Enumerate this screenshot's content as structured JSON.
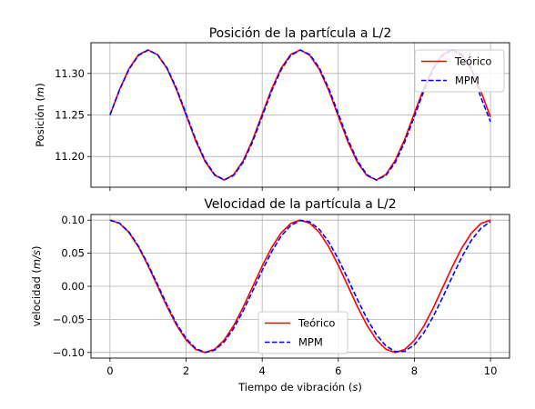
{
  "chart_data": [
    {
      "type": "line",
      "title": "Posición de la partícula a L/2",
      "xlabel": "",
      "ylabel": "Posición (m)",
      "ylabel_parts": [
        "Posición (",
        "m",
        ")"
      ],
      "xlim": [
        -0.5,
        10.5
      ],
      "ylim": [
        11.163,
        11.337
      ],
      "yticks": [
        11.2,
        11.25,
        11.3
      ],
      "ytick_labels": [
        "11.20",
        "11.25",
        "11.30"
      ],
      "grid": true,
      "legend_position": "upper right",
      "series": [
        {
          "name": "Teórico",
          "color": "#ff0000",
          "style": "solid",
          "x": [
            0,
            0.25,
            0.5,
            0.75,
            1.0,
            1.25,
            1.5,
            1.75,
            2.0,
            2.25,
            2.5,
            2.75,
            3.0,
            3.25,
            3.5,
            3.75,
            4.0,
            4.25,
            4.5,
            4.75,
            5.0,
            5.25,
            5.5,
            5.75,
            6.0,
            6.25,
            6.5,
            6.75,
            7.0,
            7.25,
            7.5,
            7.75,
            8.0,
            8.25,
            8.5,
            8.75,
            9.0,
            9.25,
            9.5,
            9.75,
            10.0
          ],
          "y": [
            11.25,
            11.2805,
            11.3058,
            11.3225,
            11.3283,
            11.3224,
            11.3057,
            11.2803,
            11.2497,
            11.2191,
            11.1939,
            11.1775,
            11.1717,
            11.1782,
            11.1948,
            11.2203,
            11.251,
            11.2816,
            11.3066,
            11.3229,
            11.3283,
            11.3219,
            11.3049,
            11.2793,
            11.2485,
            11.218,
            11.1932,
            11.1771,
            11.1717,
            11.1784,
            11.1956,
            11.2213,
            11.2522,
            11.2826,
            11.3074,
            11.3233,
            11.3283,
            11.3214,
            11.3041,
            11.2782,
            11.2475
          ]
        },
        {
          "name": "MPM",
          "color": "#0000ff",
          "style": "dashed",
          "x": [
            0,
            0.25,
            0.5,
            0.75,
            1.0,
            1.25,
            1.5,
            1.75,
            2.0,
            2.25,
            2.5,
            2.75,
            3.0,
            3.25,
            3.5,
            3.75,
            4.0,
            4.25,
            4.5,
            4.75,
            5.0,
            5.25,
            5.5,
            5.75,
            6.0,
            6.25,
            6.5,
            6.75,
            7.0,
            7.25,
            7.5,
            7.75,
            8.0,
            8.25,
            8.5,
            8.75,
            9.0,
            9.25,
            9.5,
            9.75,
            10.0
          ],
          "y": [
            11.25,
            11.2801,
            11.3051,
            11.3218,
            11.328,
            11.3227,
            11.3066,
            11.2818,
            11.2515,
            11.2208,
            11.1952,
            11.1782,
            11.1718,
            11.1772,
            11.1932,
            11.2181,
            11.2484,
            11.2791,
            11.3047,
            11.3217,
            11.3282,
            11.3228,
            11.3068,
            11.2819,
            11.2516,
            11.2208,
            11.1951,
            11.1781,
            11.1717,
            11.1771,
            11.1931,
            11.218,
            11.2483,
            11.2791,
            11.3049,
            11.3219,
            11.3283,
            11.3229,
            11.3068,
            11.2708,
            11.242
          ]
        }
      ]
    },
    {
      "type": "line",
      "title": "Velocidad de la partícula a L/2",
      "xlabel": "Tiempo de vibración (s)",
      "xlabel_parts": [
        "Tiempo de vibración (",
        "s",
        ")"
      ],
      "ylabel": "velocidad (m/s)",
      "ylabel_parts": [
        "velocidad (",
        "m/s",
        ")"
      ],
      "xlim": [
        -0.5,
        10.5
      ],
      "ylim": [
        -0.1085,
        0.1085
      ],
      "xticks": [
        0,
        2,
        4,
        6,
        8,
        10
      ],
      "xtick_labels": [
        "0",
        "2",
        "4",
        "6",
        "8",
        "10"
      ],
      "yticks": [
        -0.1,
        -0.05,
        0.0,
        0.05,
        0.1
      ],
      "ytick_labels": [
        "−0.10",
        "−0.05",
        "0.00",
        "0.05",
        "0.10"
      ],
      "grid": true,
      "legend_position": "lower center",
      "series": [
        {
          "name": "Teórico",
          "color": "#ff0000",
          "style": "solid",
          "x": [
            0,
            0.25,
            0.5,
            0.75,
            1.0,
            1.25,
            1.5,
            1.75,
            2.0,
            2.25,
            2.5,
            2.75,
            3.0,
            3.25,
            3.5,
            3.75,
            4.0,
            4.25,
            4.5,
            4.75,
            5.0,
            5.25,
            5.5,
            5.75,
            6.0,
            6.25,
            6.5,
            6.75,
            7.0,
            7.25,
            7.5,
            7.75,
            8.0,
            8.25,
            8.5,
            8.75,
            9.0,
            9.25,
            9.5,
            9.75,
            10.0
          ],
          "y": [
            0.1,
            0.0952,
            0.0812,
            0.0592,
            0.0312,
            0.0001,
            -0.031,
            -0.059,
            -0.0811,
            -0.0952,
            -0.1,
            -0.0952,
            -0.0813,
            -0.0594,
            -0.0315,
            -0.0004,
            0.0307,
            0.0588,
            0.0809,
            0.0951,
            0.1,
            0.0953,
            0.0814,
            0.0596,
            0.0318,
            0.0007,
            -0.0304,
            -0.0585,
            -0.0808,
            -0.0951,
            -0.1,
            -0.0953,
            -0.0816,
            -0.0599,
            -0.0321,
            -0.001,
            0.0301,
            0.0583,
            0.0806,
            0.095,
            0.1
          ]
        },
        {
          "name": "MPM",
          "color": "#0000ff",
          "style": "dashed",
          "x": [
            0,
            0.25,
            0.5,
            0.75,
            1.0,
            1.25,
            1.5,
            1.75,
            2.0,
            2.25,
            2.5,
            2.75,
            3.0,
            3.25,
            3.5,
            3.75,
            4.0,
            4.25,
            4.5,
            4.75,
            5.0,
            5.25,
            5.5,
            5.75,
            6.0,
            6.25,
            6.5,
            6.75,
            7.0,
            7.25,
            7.5,
            7.75,
            8.0,
            8.25,
            8.5,
            8.75,
            9.0,
            9.25,
            9.5,
            9.75,
            10.0
          ],
          "y": [
            0.1,
            0.0954,
            0.0819,
            0.0605,
            0.0331,
            0.0025,
            -0.0283,
            -0.0564,
            -0.0789,
            -0.0938,
            -0.0999,
            -0.0965,
            -0.084,
            -0.0637,
            -0.0372,
            -0.0069,
            0.0239,
            0.0526,
            0.076,
            0.092,
            0.0994,
            0.0974,
            0.0862,
            0.0669,
            0.0413,
            0.0114,
            -0.0195,
            -0.0486,
            -0.0729,
            -0.09,
            -0.0987,
            -0.0981,
            -0.0883,
            -0.07,
            -0.0452,
            -0.0159,
            0.015,
            0.0446,
            0.0697,
            0.0878,
            0.0977
          ]
        }
      ]
    }
  ]
}
